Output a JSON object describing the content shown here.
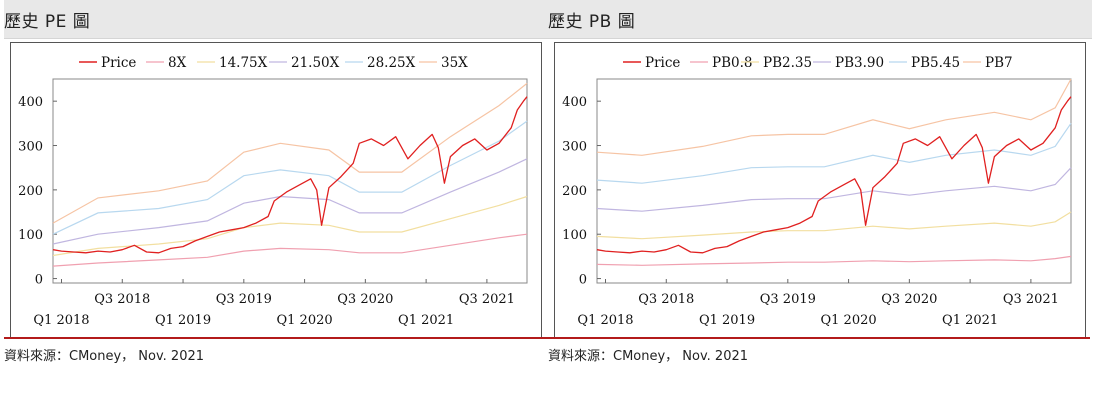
{
  "panels": [
    {
      "title": "歷史 PE 圖",
      "source": "資料來源：CMoney，  Nov. 2021"
    },
    {
      "title": "歷史 PB 圖",
      "source": "資料來源：CMoney，  Nov. 2021"
    }
  ],
  "colors": {
    "price": "#e02020",
    "band1": "#f0a0b0",
    "band2": "#f2dfa0",
    "band3": "#c0b6e0",
    "band4": "#b8d8ef",
    "band5": "#f6c4a4",
    "rule": "#b31b1b"
  },
  "chart_data": [
    {
      "type": "line",
      "title": "",
      "ylim": [
        -10,
        450
      ],
      "yticks": [
        0,
        100,
        200,
        300,
        400
      ],
      "x_range": [
        2017.93,
        2021.83
      ],
      "xticks_top": [
        {
          "label": "Q3 2018",
          "x": 2018.5
        },
        {
          "label": "Q3 2019",
          "x": 2019.5
        },
        {
          "label": "Q3 2020",
          "x": 2020.5
        },
        {
          "label": "Q3 2021",
          "x": 2021.5
        }
      ],
      "xticks_bottom": [
        {
          "label": "Q1 2018",
          "x": 2018.0
        },
        {
          "label": "Q1 2019",
          "x": 2019.0
        },
        {
          "label": "Q1 2020",
          "x": 2020.0
        },
        {
          "label": "Q1 2021",
          "x": 2021.0
        }
      ],
      "legend": [
        "Price",
        "8X",
        "14.75X",
        "21.50X",
        "28.25X",
        "35X"
      ],
      "price": [
        [
          2017.93,
          65
        ],
        [
          2018.0,
          62
        ],
        [
          2018.1,
          60
        ],
        [
          2018.2,
          58
        ],
        [
          2018.3,
          62
        ],
        [
          2018.4,
          60
        ],
        [
          2018.5,
          65
        ],
        [
          2018.6,
          75
        ],
        [
          2018.7,
          60
        ],
        [
          2018.8,
          58
        ],
        [
          2018.9,
          68
        ],
        [
          2019.0,
          72
        ],
        [
          2019.1,
          85
        ],
        [
          2019.2,
          95
        ],
        [
          2019.3,
          105
        ],
        [
          2019.4,
          110
        ],
        [
          2019.5,
          115
        ],
        [
          2019.6,
          125
        ],
        [
          2019.7,
          140
        ],
        [
          2019.75,
          175
        ],
        [
          2019.85,
          195
        ],
        [
          2019.95,
          210
        ],
        [
          2020.05,
          225
        ],
        [
          2020.1,
          200
        ],
        [
          2020.14,
          120
        ],
        [
          2020.2,
          205
        ],
        [
          2020.3,
          230
        ],
        [
          2020.4,
          260
        ],
        [
          2020.45,
          305
        ],
        [
          2020.55,
          315
        ],
        [
          2020.65,
          300
        ],
        [
          2020.75,
          320
        ],
        [
          2020.85,
          270
        ],
        [
          2020.95,
          300
        ],
        [
          2021.05,
          325
        ],
        [
          2021.1,
          295
        ],
        [
          2021.15,
          215
        ],
        [
          2021.2,
          275
        ],
        [
          2021.3,
          300
        ],
        [
          2021.4,
          315
        ],
        [
          2021.5,
          290
        ],
        [
          2021.6,
          305
        ],
        [
          2021.7,
          340
        ],
        [
          2021.75,
          380
        ],
        [
          2021.8,
          400
        ],
        [
          2021.83,
          410
        ]
      ],
      "bands": [
        {
          "name": "8X",
          "color_key": "band1",
          "points": [
            [
              2017.93,
              28
            ],
            [
              2018.3,
              35
            ],
            [
              2018.8,
              42
            ],
            [
              2019.2,
              48
            ],
            [
              2019.5,
              62
            ],
            [
              2019.8,
              68
            ],
            [
              2020.2,
              65
            ],
            [
              2020.45,
              58
            ],
            [
              2020.8,
              58
            ],
            [
              2021.2,
              75
            ],
            [
              2021.6,
              92
            ],
            [
              2021.83,
              100
            ]
          ]
        },
        {
          "name": "14.75X",
          "color_key": "band2",
          "points": [
            [
              2017.93,
              52
            ],
            [
              2018.3,
              68
            ],
            [
              2018.8,
              78
            ],
            [
              2019.2,
              90
            ],
            [
              2019.5,
              115
            ],
            [
              2019.8,
              125
            ],
            [
              2020.2,
              120
            ],
            [
              2020.45,
              105
            ],
            [
              2020.8,
              105
            ],
            [
              2021.2,
              135
            ],
            [
              2021.6,
              165
            ],
            [
              2021.83,
              185
            ]
          ]
        },
        {
          "name": "21.50X",
          "color_key": "band3",
          "points": [
            [
              2017.93,
              78
            ],
            [
              2018.3,
              100
            ],
            [
              2018.8,
              115
            ],
            [
              2019.2,
              130
            ],
            [
              2019.5,
              170
            ],
            [
              2019.8,
              185
            ],
            [
              2020.2,
              178
            ],
            [
              2020.45,
              148
            ],
            [
              2020.8,
              148
            ],
            [
              2021.2,
              195
            ],
            [
              2021.6,
              240
            ],
            [
              2021.83,
              270
            ]
          ]
        },
        {
          "name": "28.25X",
          "color_key": "band4",
          "points": [
            [
              2017.93,
              100
            ],
            [
              2018.3,
              148
            ],
            [
              2018.8,
              158
            ],
            [
              2019.2,
              178
            ],
            [
              2019.5,
              232
            ],
            [
              2019.8,
              245
            ],
            [
              2020.2,
              232
            ],
            [
              2020.45,
              195
            ],
            [
              2020.8,
              195
            ],
            [
              2021.2,
              255
            ],
            [
              2021.6,
              310
            ],
            [
              2021.83,
              355
            ]
          ]
        },
        {
          "name": "35X",
          "color_key": "band5",
          "points": [
            [
              2017.93,
              125
            ],
            [
              2018.3,
              182
            ],
            [
              2018.8,
              198
            ],
            [
              2019.2,
              220
            ],
            [
              2019.5,
              285
            ],
            [
              2019.8,
              305
            ],
            [
              2020.2,
              290
            ],
            [
              2020.45,
              240
            ],
            [
              2020.8,
              240
            ],
            [
              2021.2,
              320
            ],
            [
              2021.6,
              390
            ],
            [
              2021.83,
              440
            ]
          ]
        }
      ]
    },
    {
      "type": "line",
      "title": "",
      "ylim": [
        -10,
        450
      ],
      "yticks": [
        0,
        100,
        200,
        300,
        400
      ],
      "x_range": [
        2017.93,
        2021.83
      ],
      "xticks_top": [
        {
          "label": "Q3 2018",
          "x": 2018.5
        },
        {
          "label": "Q3 2019",
          "x": 2019.5
        },
        {
          "label": "Q3 2020",
          "x": 2020.5
        },
        {
          "label": "Q3 2021",
          "x": 2021.5
        }
      ],
      "xticks_bottom": [
        {
          "label": "Q1 2018",
          "x": 2018.0
        },
        {
          "label": "Q1 2019",
          "x": 2019.0
        },
        {
          "label": "Q1 2020",
          "x": 2020.0
        },
        {
          "label": "Q1 2021",
          "x": 2021.0
        }
      ],
      "legend": [
        "Price",
        "PB0.8",
        "PB2.35",
        "PB3.90",
        "PB5.45",
        "PB7"
      ],
      "price": [
        [
          2017.93,
          65
        ],
        [
          2018.0,
          62
        ],
        [
          2018.1,
          60
        ],
        [
          2018.2,
          58
        ],
        [
          2018.3,
          62
        ],
        [
          2018.4,
          60
        ],
        [
          2018.5,
          65
        ],
        [
          2018.6,
          75
        ],
        [
          2018.7,
          60
        ],
        [
          2018.8,
          58
        ],
        [
          2018.9,
          68
        ],
        [
          2019.0,
          72
        ],
        [
          2019.1,
          85
        ],
        [
          2019.2,
          95
        ],
        [
          2019.3,
          105
        ],
        [
          2019.4,
          110
        ],
        [
          2019.5,
          115
        ],
        [
          2019.6,
          125
        ],
        [
          2019.7,
          140
        ],
        [
          2019.75,
          175
        ],
        [
          2019.85,
          195
        ],
        [
          2019.95,
          210
        ],
        [
          2020.05,
          225
        ],
        [
          2020.1,
          200
        ],
        [
          2020.14,
          120
        ],
        [
          2020.2,
          205
        ],
        [
          2020.3,
          230
        ],
        [
          2020.4,
          260
        ],
        [
          2020.45,
          305
        ],
        [
          2020.55,
          315
        ],
        [
          2020.65,
          300
        ],
        [
          2020.75,
          320
        ],
        [
          2020.85,
          270
        ],
        [
          2020.95,
          300
        ],
        [
          2021.05,
          325
        ],
        [
          2021.1,
          295
        ],
        [
          2021.15,
          215
        ],
        [
          2021.2,
          275
        ],
        [
          2021.3,
          300
        ],
        [
          2021.4,
          315
        ],
        [
          2021.5,
          290
        ],
        [
          2021.6,
          305
        ],
        [
          2021.7,
          340
        ],
        [
          2021.75,
          380
        ],
        [
          2021.8,
          400
        ],
        [
          2021.83,
          410
        ]
      ],
      "bands": [
        {
          "name": "PB0.8",
          "color_key": "band1",
          "points": [
            [
              2017.93,
              32
            ],
            [
              2018.3,
              30
            ],
            [
              2018.8,
              33
            ],
            [
              2019.2,
              35
            ],
            [
              2019.5,
              37
            ],
            [
              2019.8,
              37
            ],
            [
              2020.2,
              40
            ],
            [
              2020.5,
              38
            ],
            [
              2020.8,
              40
            ],
            [
              2021.2,
              42
            ],
            [
              2021.5,
              40
            ],
            [
              2021.7,
              45
            ],
            [
              2021.83,
              50
            ]
          ]
        },
        {
          "name": "PB2.35",
          "color_key": "band2",
          "points": [
            [
              2017.93,
              95
            ],
            [
              2018.3,
              90
            ],
            [
              2018.8,
              98
            ],
            [
              2019.2,
              105
            ],
            [
              2019.5,
              108
            ],
            [
              2019.8,
              108
            ],
            [
              2020.2,
              118
            ],
            [
              2020.5,
              112
            ],
            [
              2020.8,
              118
            ],
            [
              2021.2,
              125
            ],
            [
              2021.5,
              118
            ],
            [
              2021.7,
              128
            ],
            [
              2021.83,
              150
            ]
          ]
        },
        {
          "name": "PB3.90",
          "color_key": "band3",
          "points": [
            [
              2017.93,
              158
            ],
            [
              2018.3,
              152
            ],
            [
              2018.8,
              165
            ],
            [
              2019.2,
              178
            ],
            [
              2019.5,
              180
            ],
            [
              2019.8,
              180
            ],
            [
              2020.2,
              198
            ],
            [
              2020.5,
              188
            ],
            [
              2020.8,
              198
            ],
            [
              2021.2,
              208
            ],
            [
              2021.5,
              198
            ],
            [
              2021.7,
              212
            ],
            [
              2021.83,
              250
            ]
          ]
        },
        {
          "name": "PB5.45",
          "color_key": "band4",
          "points": [
            [
              2017.93,
              222
            ],
            [
              2018.3,
              215
            ],
            [
              2018.8,
              232
            ],
            [
              2019.2,
              250
            ],
            [
              2019.5,
              252
            ],
            [
              2019.8,
              252
            ],
            [
              2020.2,
              278
            ],
            [
              2020.5,
              262
            ],
            [
              2020.8,
              278
            ],
            [
              2021.2,
              290
            ],
            [
              2021.5,
              278
            ],
            [
              2021.7,
              298
            ],
            [
              2021.83,
              350
            ]
          ]
        },
        {
          "name": "PB7",
          "color_key": "band5",
          "points": [
            [
              2017.93,
              285
            ],
            [
              2018.3,
              278
            ],
            [
              2018.8,
              298
            ],
            [
              2019.2,
              322
            ],
            [
              2019.5,
              325
            ],
            [
              2019.8,
              325
            ],
            [
              2020.2,
              358
            ],
            [
              2020.5,
              338
            ],
            [
              2020.8,
              358
            ],
            [
              2021.2,
              375
            ],
            [
              2021.5,
              358
            ],
            [
              2021.7,
              385
            ],
            [
              2021.83,
              450
            ]
          ]
        }
      ]
    }
  ]
}
